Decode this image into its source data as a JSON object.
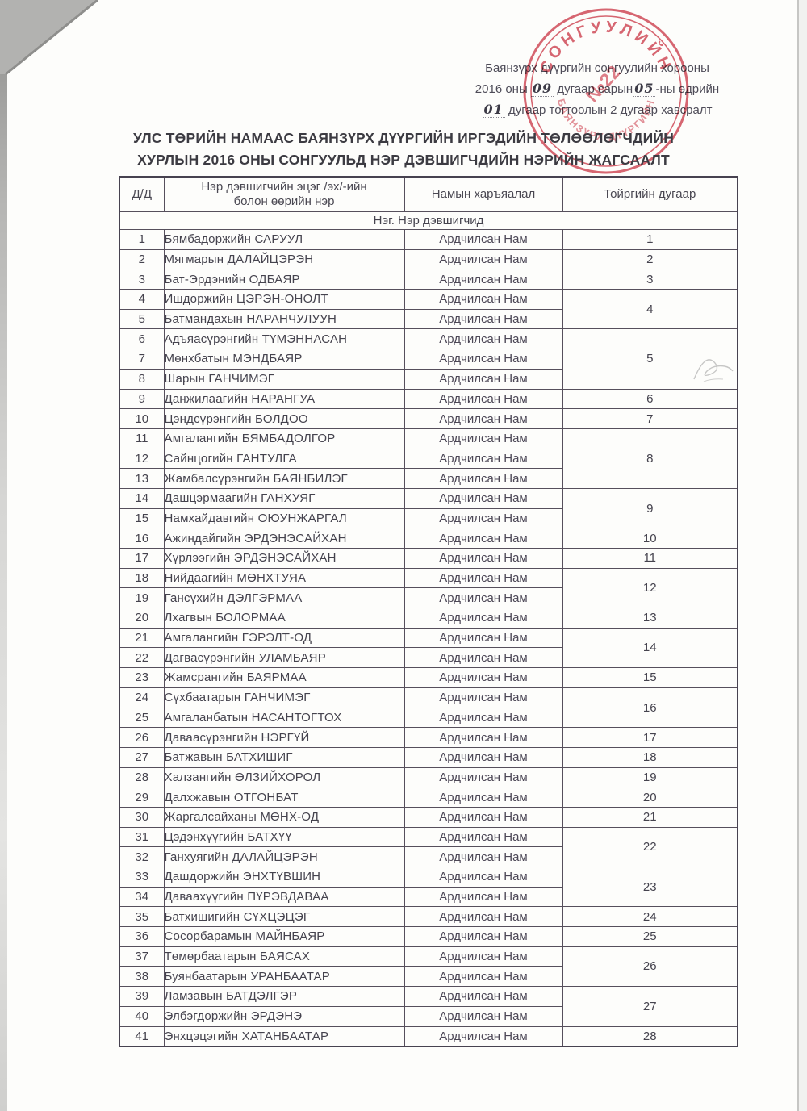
{
  "header_note": {
    "line1": "Баянзүрх дүүргийн сонгуулийн хорооны",
    "year_pre": "2016 оны",
    "month_hw": "09",
    "month_post": "дугаар сарын",
    "day_hw": "05",
    "day_post": "-ны өдрийн",
    "res_hw": "01",
    "res_post": "дугаар тогтоолын 2 дугаар хавсралт"
  },
  "title": {
    "line1": "УЛС ТӨРИЙН НАМААС БАЯНЗҮРХ ДҮҮРГИЙН ИРГЭДИЙН ТӨЛӨӨЛӨГЧДИЙН",
    "line2": "ХУРЛЫН 2016 ОНЫ СОНГУУЛЬД НЭР ДЭВШИГЧДИЙН НЭРИЙН  ЖАГСААЛТ"
  },
  "stamp": {
    "arc_top": "СОНГУУЛИЙН",
    "arc_bottom": "БАЯНЗҮРХ ДҮҮРГИЙН",
    "number": "№22",
    "color": "#cf4150"
  },
  "table": {
    "headers": [
      "Д/Д",
      "Нэр дэвшигчийн эцэг /эх/-ийн болон өөрийн нэр",
      "Намын харъяалал",
      "Тойргийн дугаар"
    ],
    "header_name_line1": "Нэр дэвшигчийн эцэг /эх/-ийн",
    "header_name_line2": "болон өөрийн нэр",
    "section": "Нэг. Нэр дэвшигчид",
    "rows": [
      {
        "no": 1,
        "name": "Бямбадоржийн САРУУЛ",
        "party": "Ардчилсан Нам",
        "district": "1",
        "district_span": 1
      },
      {
        "no": 2,
        "name": "Мягмарын ДАЛАЙЦЭРЭН",
        "party": "Ардчилсан Нам",
        "district": "2",
        "district_span": 1
      },
      {
        "no": 3,
        "name": "Бат-Эрдэнийн ОДБАЯР",
        "party": "Ардчилсан Нам",
        "district": "3",
        "district_span": 1
      },
      {
        "no": 4,
        "name": "Ишдоржийн ЦЭРЭН-ОНОЛТ",
        "party": "Ардчилсан Нам",
        "district": "4",
        "district_span": 2
      },
      {
        "no": 5,
        "name": "Батмандахын НАРАНЧУЛУУН",
        "party": "Ардчилсан Нам"
      },
      {
        "no": 6,
        "name": "Адъяасүрэнгийн ТҮМЭННАСАН",
        "party": "Ардчилсан Нам",
        "district": "5",
        "district_span": 3
      },
      {
        "no": 7,
        "name": "Мөнхбатын МЭНДБАЯР",
        "party": "Ардчилсан Нам"
      },
      {
        "no": 8,
        "name": "Шарын ГАНЧИМЭГ",
        "party": "Ардчилсан Нам"
      },
      {
        "no": 9,
        "name": "Данжилаагийн НАРАНГУА",
        "party": "Ардчилсан Нам",
        "district": "6",
        "district_span": 1
      },
      {
        "no": 10,
        "name": "Цэндсүрэнгийн БОЛДОО",
        "party": "Ардчилсан Нам",
        "district": "7",
        "district_span": 1
      },
      {
        "no": 11,
        "name": "Амгалангийн БЯМБАДОЛГОР",
        "party": "Ардчилсан Нам",
        "district": "8",
        "district_span": 3
      },
      {
        "no": 12,
        "name": "Сайнцогийн ГАНТУЛГА",
        "party": "Ардчилсан Нам"
      },
      {
        "no": 13,
        "name": "Жамбалсүрэнгийн БАЯНБИЛЭГ",
        "party": "Ардчилсан Нам"
      },
      {
        "no": 14,
        "name": "Дашцэрмаагийн ГАНХУЯГ",
        "party": "Ардчилсан Нам",
        "district": "9",
        "district_span": 2
      },
      {
        "no": 15,
        "name": "Намхайдавгийн ОЮУНЖАРГАЛ",
        "party": "Ардчилсан Нам"
      },
      {
        "no": 16,
        "name": "Ажиндайгийн ЭРДЭНЭСАЙХАН",
        "party": "Ардчилсан Нам",
        "district": "10",
        "district_span": 1
      },
      {
        "no": 17,
        "name": "Хүрлээгийн ЭРДЭНЭСАЙХАН",
        "party": "Ардчилсан Нам",
        "district": "11",
        "district_span": 1
      },
      {
        "no": 18,
        "name": "Нийдаагийн МӨНХТУЯА",
        "party": "Ардчилсан Нам",
        "district": "12",
        "district_span": 2
      },
      {
        "no": 19,
        "name": "Гансүхийн ДЭЛГЭРМАА",
        "party": "Ардчилсан Нам"
      },
      {
        "no": 20,
        "name": "Лхагвын БОЛОРМАА",
        "party": "Ардчилсан Нам",
        "district": "13",
        "district_span": 1
      },
      {
        "no": 21,
        "name": "Амгалангийн ГЭРЭЛТ-ОД",
        "party": "Ардчилсан Нам",
        "district": "14",
        "district_span": 2
      },
      {
        "no": 22,
        "name": "Дагвасүрэнгийн УЛАМБАЯР",
        "party": "Ардчилсан Нам"
      },
      {
        "no": 23,
        "name": "Жамсрангийн БАЯРМАА",
        "party": "Ардчилсан Нам",
        "district": "15",
        "district_span": 1
      },
      {
        "no": 24,
        "name": "Сүхбаатарын ГАНЧИМЭГ",
        "party": "Ардчилсан Нам",
        "district": "16",
        "district_span": 2
      },
      {
        "no": 25,
        "name": "Амгаланбатын НАСАНТОГТОХ",
        "party": "Ардчилсан Нам"
      },
      {
        "no": 26,
        "name": "Даваасүрэнгийн НЭРГҮЙ",
        "party": "Ардчилсан Нам",
        "district": "17",
        "district_span": 1
      },
      {
        "no": 27,
        "name": "Батжавын БАТХИШИГ",
        "party": "Ардчилсан Нам",
        "district": "18",
        "district_span": 1
      },
      {
        "no": 28,
        "name": "Халзангийн ӨЛЗИЙХОРОЛ",
        "party": "Ардчилсан Нам",
        "district": "19",
        "district_span": 1
      },
      {
        "no": 29,
        "name": "Далхжавын ОТГОНБАТ",
        "party": "Ардчилсан Нам",
        "district": "20",
        "district_span": 1
      },
      {
        "no": 30,
        "name": "Жаргалсайханы МӨНХ-ОД",
        "party": "Ардчилсан Нам",
        "district": "21",
        "district_span": 1
      },
      {
        "no": 31,
        "name": "Цэдэнхүүгийн БАТХҮҮ",
        "party": "Ардчилсан Нам",
        "district": "22",
        "district_span": 2
      },
      {
        "no": 32,
        "name": "Ганхуягийн ДАЛАЙЦЭРЭН",
        "party": "Ардчилсан Нам"
      },
      {
        "no": 33,
        "name": "Дашдоржийн ЭНХТҮВШИН",
        "party": "Ардчилсан Нам",
        "district": "23",
        "district_span": 2
      },
      {
        "no": 34,
        "name": "Даваахүүгийн ПҮРЭВДАВАА",
        "party": "Ардчилсан Нам"
      },
      {
        "no": 35,
        "name": "Батхишигийн СҮХЦЭЦЭГ",
        "party": "Ардчилсан Нам",
        "district": "24",
        "district_span": 1
      },
      {
        "no": 36,
        "name": "Сосорбарамын МАЙНБАЯР",
        "party": "Ардчилсан Нам",
        "district": "25",
        "district_span": 1
      },
      {
        "no": 37,
        "name": "Төмөрбаатарын БАЯСАХ",
        "party": "Ардчилсан Нам",
        "district": "26",
        "district_span": 2
      },
      {
        "no": 38,
        "name": "Буянбаатарын УРАНБААТАР",
        "party": "Ардчилсан Нам"
      },
      {
        "no": 39,
        "name": "Ламзавын БАТДЭЛГЭР",
        "party": "Ардчилсан Нам",
        "district": "27",
        "district_span": 2
      },
      {
        "no": 40,
        "name": "Элбэгдоржийн ЭРДЭНЭ",
        "party": "Ардчилсан Нам"
      },
      {
        "no": 41,
        "name": "Энхцэцэгийн ХАТАНБААТАР",
        "party": "Ардчилсан Нам",
        "district": "28",
        "district_span": 1
      }
    ]
  }
}
